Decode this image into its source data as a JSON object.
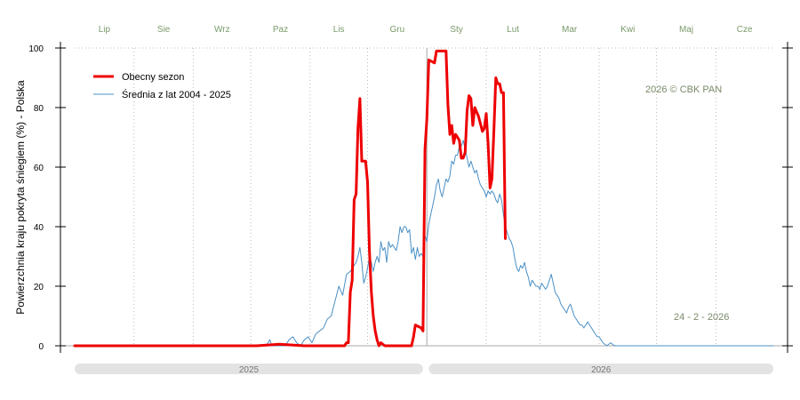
{
  "chart_data": {
    "type": "line",
    "ylabel": "Powierzchnia kraju pokryta śniegiem (%) -  Polska",
    "ylim": [
      0,
      100
    ],
    "y_ticks": [
      0,
      20,
      40,
      60,
      80,
      100
    ],
    "x_range_days": [
      0,
      365
    ],
    "months": [
      {
        "label": "Lip",
        "day": 0
      },
      {
        "label": "Sie",
        "day": 31
      },
      {
        "label": "Wrz",
        "day": 62
      },
      {
        "label": "Paz",
        "day": 92
      },
      {
        "label": "Lis",
        "day": 123
      },
      {
        "label": "Gru",
        "day": 153
      },
      {
        "label": "Sty",
        "day": 184
      },
      {
        "label": "Lut",
        "day": 215
      },
      {
        "label": "Mar",
        "day": 243
      },
      {
        "label": "Kwi",
        "day": 274
      },
      {
        "label": "Maj",
        "day": 304
      },
      {
        "label": "Cze",
        "day": 335
      }
    ],
    "years": [
      {
        "label": "2025",
        "from_day": 0,
        "to_day": 182
      },
      {
        "label": "2026",
        "from_day": 185,
        "to_day": 365
      }
    ],
    "annotations": {
      "copyright": "2026  © CBK PAN",
      "date": "24 - 2 - 2026"
    },
    "grid": true,
    "legend_position": "top-left",
    "colors": {
      "current": "#ee0000",
      "average": "#4a90c6",
      "grid": "#bbbbbb",
      "month_label": "#7a9a6a"
    },
    "series": [
      {
        "name": "Obecny sezon",
        "color": "#ee0000",
        "points": [
          [
            0,
            0
          ],
          [
            95,
            0
          ],
          [
            107,
            0.5
          ],
          [
            120,
            0
          ],
          [
            141,
            0
          ],
          [
            142,
            1
          ],
          [
            143,
            1
          ],
          [
            144,
            18
          ],
          [
            145,
            22
          ],
          [
            146,
            49
          ],
          [
            147,
            51
          ],
          [
            148,
            73
          ],
          [
            149,
            83
          ],
          [
            150,
            62
          ],
          [
            152,
            62
          ],
          [
            153,
            55
          ],
          [
            154,
            32
          ],
          [
            155,
            18
          ],
          [
            156,
            10
          ],
          [
            157,
            5
          ],
          [
            158,
            2
          ],
          [
            159,
            0
          ],
          [
            160,
            1
          ],
          [
            162,
            0
          ],
          [
            176,
            0
          ],
          [
            177,
            3
          ],
          [
            178,
            7
          ],
          [
            181,
            6
          ],
          [
            182,
            5
          ],
          [
            183,
            66
          ],
          [
            184,
            76
          ],
          [
            185,
            96
          ],
          [
            188,
            95
          ],
          [
            189,
            99
          ],
          [
            192,
            99
          ],
          [
            194,
            99
          ],
          [
            195,
            81
          ],
          [
            196,
            71
          ],
          [
            197,
            74
          ],
          [
            198,
            68
          ],
          [
            199,
            71
          ],
          [
            200,
            70
          ],
          [
            201,
            69
          ],
          [
            202,
            63
          ],
          [
            203,
            63
          ],
          [
            204,
            65
          ],
          [
            205,
            79
          ],
          [
            206,
            84
          ],
          [
            207,
            83
          ],
          [
            208,
            74
          ],
          [
            209,
            80
          ],
          [
            211,
            77
          ],
          [
            213,
            72
          ],
          [
            214,
            73
          ],
          [
            215,
            78
          ],
          [
            216,
            68
          ],
          [
            217,
            53
          ],
          [
            218,
            56
          ],
          [
            219,
            72
          ],
          [
            220,
            90
          ],
          [
            221,
            88
          ],
          [
            222,
            88
          ],
          [
            223,
            85
          ],
          [
            224,
            85
          ],
          [
            225,
            36
          ]
        ]
      },
      {
        "name": "Średnia z lat 2004 - 2025",
        "color": "#4a90c6",
        "points": [
          [
            0,
            0
          ],
          [
            100,
            0
          ],
          [
            102,
            2
          ],
          [
            103,
            0
          ],
          [
            110,
            0
          ],
          [
            112,
            2
          ],
          [
            114,
            3
          ],
          [
            116,
            1
          ],
          [
            118,
            0
          ],
          [
            120,
            2
          ],
          [
            122,
            3
          ],
          [
            124,
            1
          ],
          [
            126,
            4
          ],
          [
            128,
            5
          ],
          [
            130,
            6
          ],
          [
            132,
            9
          ],
          [
            134,
            10
          ],
          [
            136,
            15
          ],
          [
            138,
            20
          ],
          [
            140,
            17
          ],
          [
            142,
            24
          ],
          [
            144,
            25
          ],
          [
            146,
            27
          ],
          [
            147,
            28
          ],
          [
            148,
            30
          ],
          [
            149,
            33
          ],
          [
            150,
            28
          ],
          [
            151,
            21
          ],
          [
            152,
            23
          ],
          [
            153,
            26
          ],
          [
            154,
            30
          ],
          [
            155,
            28
          ],
          [
            156,
            25
          ],
          [
            157,
            28
          ],
          [
            158,
            30
          ],
          [
            159,
            28
          ],
          [
            160,
            35
          ],
          [
            161,
            32
          ],
          [
            162,
            33
          ],
          [
            163,
            28
          ],
          [
            164,
            35
          ],
          [
            165,
            33
          ],
          [
            166,
            34
          ],
          [
            167,
            33
          ],
          [
            168,
            32
          ],
          [
            169,
            35
          ],
          [
            170,
            40
          ],
          [
            171,
            38
          ],
          [
            172,
            40
          ],
          [
            173,
            40
          ],
          [
            174,
            38
          ],
          [
            175,
            39
          ],
          [
            176,
            31
          ],
          [
            177,
            33
          ],
          [
            178,
            29
          ],
          [
            179,
            33
          ],
          [
            180,
            30
          ],
          [
            181,
            31
          ],
          [
            182,
            30
          ],
          [
            183,
            37
          ],
          [
            184,
            35
          ],
          [
            185,
            41
          ],
          [
            186,
            44
          ],
          [
            187,
            47
          ],
          [
            188,
            50
          ],
          [
            189,
            54
          ],
          [
            190,
            56
          ],
          [
            191,
            52
          ],
          [
            192,
            50
          ],
          [
            193,
            53
          ],
          [
            194,
            56
          ],
          [
            195,
            55
          ],
          [
            196,
            57
          ],
          [
            197,
            62
          ],
          [
            198,
            61
          ],
          [
            199,
            64
          ],
          [
            200,
            64
          ],
          [
            201,
            67
          ],
          [
            202,
            67
          ],
          [
            203,
            69
          ],
          [
            204,
            66
          ],
          [
            205,
            63
          ],
          [
            206,
            60
          ],
          [
            207,
            62
          ],
          [
            208,
            60
          ],
          [
            209,
            58
          ],
          [
            210,
            59
          ],
          [
            211,
            56
          ],
          [
            212,
            54
          ],
          [
            213,
            53
          ],
          [
            214,
            52
          ],
          [
            215,
            50
          ],
          [
            216,
            52
          ],
          [
            217,
            51
          ],
          [
            218,
            52
          ],
          [
            219,
            51
          ],
          [
            220,
            49
          ],
          [
            221,
            48
          ],
          [
            222,
            51
          ],
          [
            223,
            49
          ],
          [
            224,
            44
          ],
          [
            225,
            40
          ],
          [
            226,
            38
          ],
          [
            227,
            36
          ],
          [
            228,
            35
          ],
          [
            229,
            33
          ],
          [
            230,
            29
          ],
          [
            231,
            26
          ],
          [
            232,
            25
          ],
          [
            233,
            27
          ],
          [
            234,
            26
          ],
          [
            235,
            28
          ],
          [
            236,
            25
          ],
          [
            237,
            23
          ],
          [
            238,
            20
          ],
          [
            239,
            22
          ],
          [
            240,
            21
          ],
          [
            241,
            20
          ],
          [
            242,
            20
          ],
          [
            243,
            19
          ],
          [
            244,
            21
          ],
          [
            245,
            20
          ],
          [
            246,
            19
          ],
          [
            247,
            20
          ],
          [
            248,
            22
          ],
          [
            249,
            24
          ],
          [
            250,
            21
          ],
          [
            251,
            18
          ],
          [
            252,
            17
          ],
          [
            253,
            16
          ],
          [
            254,
            14
          ],
          [
            255,
            13
          ],
          [
            256,
            12
          ],
          [
            257,
            11
          ],
          [
            258,
            13
          ],
          [
            259,
            14
          ],
          [
            260,
            12
          ],
          [
            261,
            10
          ],
          [
            262,
            9
          ],
          [
            263,
            8
          ],
          [
            264,
            7
          ],
          [
            265,
            7
          ],
          [
            266,
            6
          ],
          [
            267,
            7
          ],
          [
            268,
            8
          ],
          [
            269,
            7
          ],
          [
            270,
            6
          ],
          [
            271,
            5
          ],
          [
            272,
            4
          ],
          [
            273,
            3
          ],
          [
            274,
            3
          ],
          [
            275,
            2
          ],
          [
            276,
            1
          ],
          [
            278,
            0
          ],
          [
            280,
            1
          ],
          [
            282,
            0
          ],
          [
            365,
            0
          ]
        ]
      }
    ]
  }
}
